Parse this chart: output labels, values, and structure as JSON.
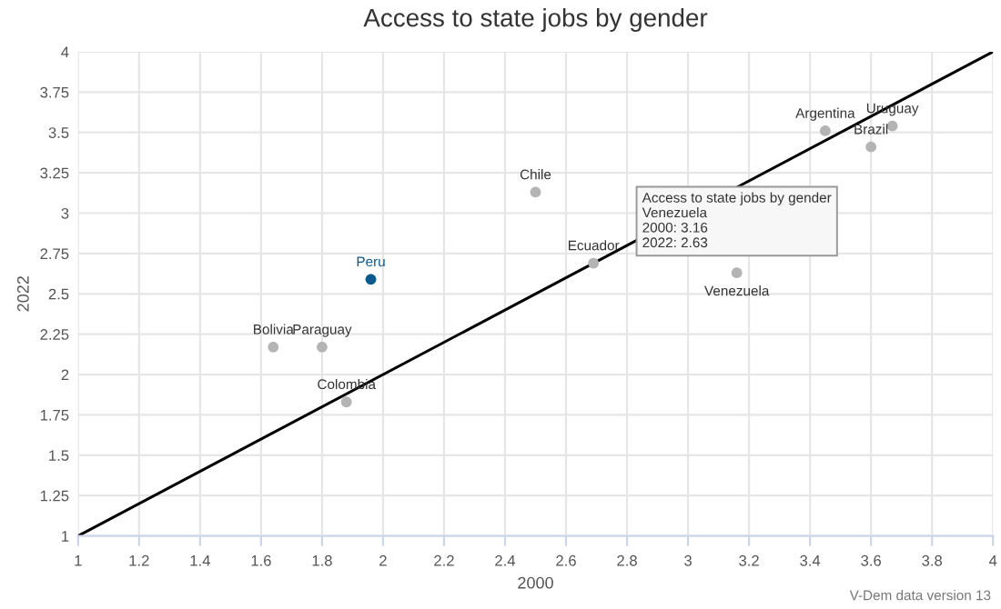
{
  "chart_data": {
    "type": "scatter",
    "title": "Access to state jobs by gender",
    "xlabel": "2000",
    "ylabel": "2022",
    "xlim": [
      1,
      4
    ],
    "xticks": [
      1,
      1.2,
      1.4,
      1.6,
      1.8,
      2,
      2.2,
      2.4,
      2.6,
      2.8,
      3,
      3.2,
      3.4,
      3.6,
      3.8,
      4
    ],
    "ylim": [
      1,
      4
    ],
    "yticks": [
      1,
      1.25,
      1.5,
      1.75,
      2,
      2.25,
      2.5,
      2.75,
      3,
      3.25,
      3.5,
      3.75,
      4
    ],
    "grid": true,
    "marker": "circle",
    "series": [
      {
        "type": "line",
        "color": "#000000",
        "marker": "none",
        "x": [
          1,
          4
        ],
        "values": [
          1,
          4
        ]
      },
      {
        "x": [
          1.96,
          1.64,
          1.8,
          1.88,
          2.5,
          2.69,
          3.16,
          3.45,
          3.67,
          3.6
        ],
        "values": [
          2.59,
          2.17,
          2.17,
          1.83,
          3.13,
          2.69,
          2.63,
          3.51,
          3.54,
          3.41
        ],
        "colors": [
          "#0b5a8e",
          "#b4b4b4",
          "#b4b4b4",
          "#b4b4b4",
          "#b4b4b4",
          "#b4b4b4",
          "#b4b4b4",
          "#b4b4b4",
          "#b4b4b4",
          "#b4b4b4"
        ]
      }
    ],
    "annotations": [
      {
        "text": "Peru",
        "x": 1.96,
        "y": 2.59
      },
      {
        "text": "Bolivia",
        "x": 1.64,
        "y": 2.17
      },
      {
        "text": "Paraguay",
        "x": 1.8,
        "y": 2.17
      },
      {
        "text": "Colombia",
        "x": 1.88,
        "y": 1.83
      },
      {
        "text": "Chile",
        "x": 2.5,
        "y": 3.13
      },
      {
        "text": "Ecuador",
        "x": 2.69,
        "y": 2.69
      },
      {
        "text": "Venezuela",
        "x": 3.16,
        "y": 2.63
      },
      {
        "text": "Argentina",
        "x": 3.45,
        "y": 3.51
      },
      {
        "text": "Uruguay",
        "x": 3.67,
        "y": 3.54
      },
      {
        "text": "Brazil",
        "x": 3.6,
        "y": 3.41
      },
      {
        "text": "Access to state jobs by gender\nVenezuela\n2000: 3.16\n2022: 2.63",
        "x": 3.16,
        "y": 2.63
      },
      "V-Dem data version 13"
    ]
  }
}
